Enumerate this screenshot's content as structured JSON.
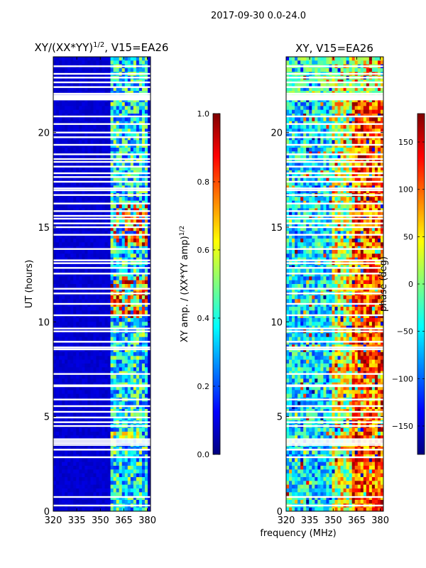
{
  "figure": {
    "suptitle": "2017-09-30 0.0-24.0",
    "xlabel": "frequency (MHz)",
    "ylabel": "UT (hours)"
  },
  "chart_data": [
    {
      "type": "heatmap",
      "title_main": "XY/(XX*YY)",
      "title_sup": "1/2",
      "title_rest": ", V15=EA26",
      "xlim": [
        320,
        382
      ],
      "ylim": [
        0,
        24
      ],
      "xticks": [
        320,
        335,
        350,
        365,
        380
      ],
      "yticks": [
        0,
        5,
        10,
        15,
        20
      ],
      "colormap": "jet",
      "colorbar": {
        "label_main": "XY amp. / (XX*YY amp)",
        "label_sup": "1/2",
        "range": [
          0.0,
          1.0
        ],
        "ticks": [
          "0.0",
          "0.2",
          "0.4",
          "0.6",
          "0.8",
          "1.0"
        ],
        "tick_values": [
          0.0,
          0.2,
          0.4,
          0.6,
          0.8,
          1.0
        ]
      }
    },
    {
      "type": "heatmap",
      "title_main": "XY, V15=EA26",
      "xlim": [
        320,
        382
      ],
      "ylim": [
        0,
        24
      ],
      "xticks": [
        320,
        335,
        350,
        365,
        380
      ],
      "yticks": [
        0,
        5,
        10,
        15,
        20
      ],
      "colormap": "jet",
      "colorbar": {
        "label_main": "phase (deg)",
        "range": [
          -180,
          180
        ],
        "ticks": [
          "−150",
          "−100",
          "−50",
          "0",
          "50",
          "100",
          "150"
        ],
        "tick_values": [
          -150,
          -100,
          -50,
          0,
          50,
          100,
          150
        ]
      }
    }
  ],
  "blank_hours": [
    0.3,
    0.75,
    2.85,
    3.25,
    3.5,
    3.6,
    3.7,
    3.8,
    4.5,
    4.7,
    4.95,
    5.25,
    5.55,
    5.9,
    6.6,
    6.65,
    7.25,
    8.55,
    8.65,
    8.95,
    9.5,
    9.65,
    10.35,
    10.95,
    11.5,
    11.75,
    12.55,
    12.85,
    13.1,
    13.25,
    13.85,
    14.6,
    15.0,
    15.2,
    15.45,
    15.6,
    15.85,
    16.25,
    16.7,
    16.95,
    17.05,
    17.4,
    17.65,
    17.85,
    18.2,
    18.45,
    18.6,
    18.85,
    19.35,
    19.75,
    20.0,
    20.45,
    20.85,
    21.9,
    22.05,
    22.4,
    22.65,
    22.9,
    23.1,
    23.5
  ]
}
